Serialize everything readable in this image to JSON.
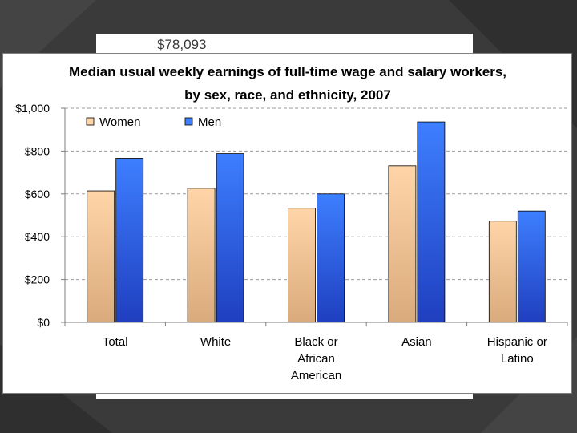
{
  "slide": {
    "behind_text": "$78,093",
    "colors": {
      "background": "#3a3a3a",
      "stripe": "#2b2b2b"
    }
  },
  "chart_data": {
    "type": "bar",
    "title_line1": "Median usual weekly earnings of full-time wage and salary workers,",
    "title_line2": "by sex, race, and ethnicity, 2007",
    "categories": [
      [
        "Total"
      ],
      [
        "White"
      ],
      [
        "Black or",
        "African",
        "American"
      ],
      [
        "Asian"
      ],
      [
        "Hispanic or",
        "Latino"
      ]
    ],
    "series": [
      {
        "name": "Women",
        "values": [
          614,
          626,
          533,
          731,
          473
        ],
        "color_top": "#ffd5a8",
        "color_bottom": "#d9aa7c"
      },
      {
        "name": "Men",
        "values": [
          766,
          788,
          600,
          936,
          520
        ],
        "color_top": "#3d7fff",
        "color_bottom": "#1f3fbf"
      }
    ],
    "ylim": [
      0,
      1000
    ],
    "yticks": [
      0,
      200,
      400,
      600,
      800,
      1000
    ],
    "ytick_labels": [
      "$0",
      "$200",
      "$400",
      "$600",
      "$800",
      "$1,000"
    ],
    "grid": true,
    "legend_position": "top-left"
  }
}
